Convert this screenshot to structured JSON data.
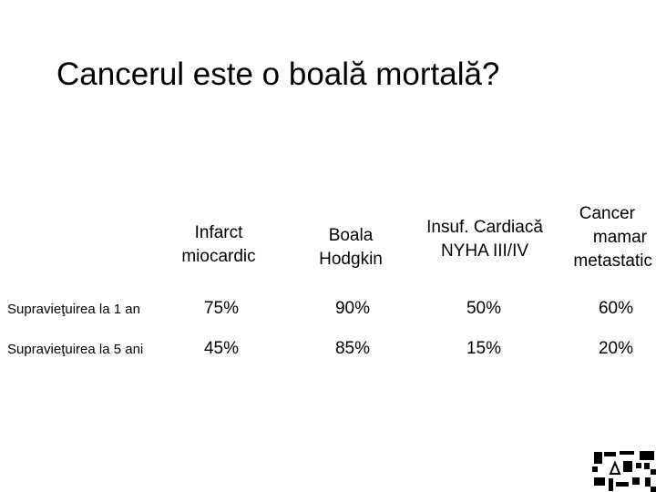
{
  "slide": {
    "title": "Cancerul este o boală mortală?"
  },
  "table": {
    "columns": [
      {
        "lines": [
          "Infarct",
          "miocardic"
        ]
      },
      {
        "lines": [
          "Boala",
          "Hodgkin"
        ]
      },
      {
        "lines": [
          "Insuf. Cardiacă",
          "NYHA III/IV"
        ]
      },
      {
        "lines": [
          "Cancer",
          "mamar",
          "metastatic"
        ]
      }
    ],
    "rows": [
      {
        "label": "Supravieţuirea la 1 an",
        "values": [
          "75%",
          "90%",
          "50%",
          "60%"
        ]
      },
      {
        "label": "Supravieţuirea la 5 ani",
        "values": [
          "45%",
          "85%",
          "15%",
          "20%"
        ]
      }
    ]
  },
  "logo": {
    "icon": "institution-logo-icon"
  }
}
